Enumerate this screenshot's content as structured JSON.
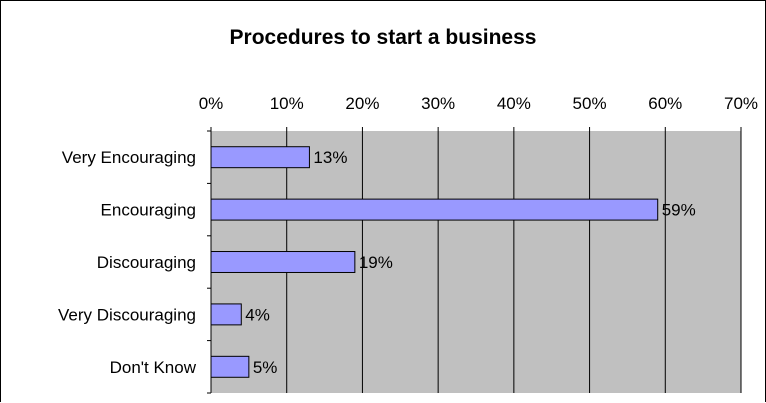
{
  "chart_data": {
    "type": "bar",
    "orientation": "horizontal",
    "title": "Procedures to start a business",
    "categories": [
      "Very Encouraging",
      "Encouraging",
      "Discouraging",
      "Very Discouraging",
      "Don't Know"
    ],
    "values": [
      13,
      59,
      19,
      4,
      5
    ],
    "data_labels": [
      "13%",
      "59%",
      "19%",
      "4%",
      "5%"
    ],
    "xlim": [
      0,
      70
    ],
    "x_ticks": [
      0,
      10,
      20,
      30,
      40,
      50,
      60,
      70
    ],
    "x_tick_labels": [
      "0%",
      "10%",
      "20%",
      "30%",
      "40%",
      "50%",
      "60%",
      "70%"
    ],
    "x_axis_position": "top",
    "grid": true,
    "colors": {
      "bar_fill": "#9999ff",
      "bar_stroke": "#000000",
      "plot_background": "#c0c0c0",
      "grid": "#000000"
    }
  }
}
